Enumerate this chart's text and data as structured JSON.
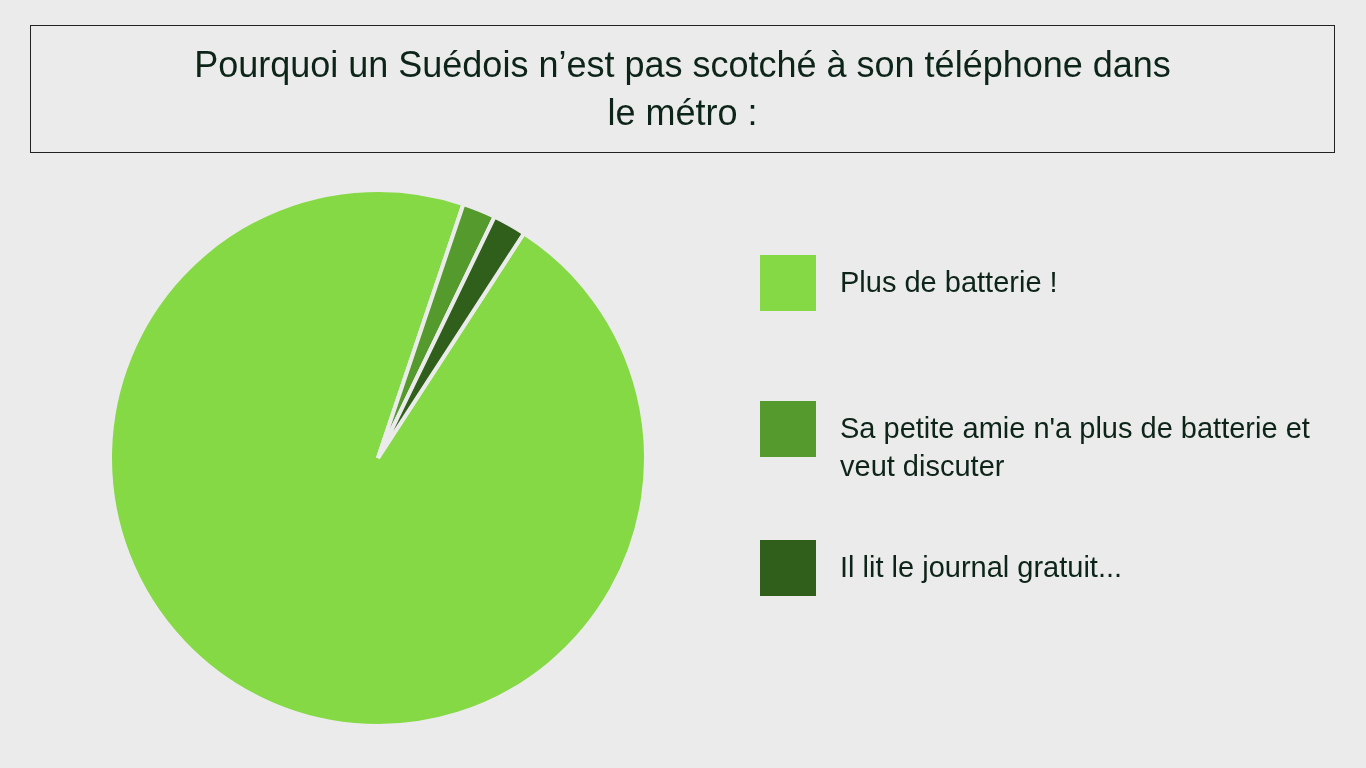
{
  "chart_data": {
    "type": "pie",
    "title": "Pourquoi un Suédois n’est pas scotché à son téléphone dans le métro :",
    "categories": [
      "Plus de batterie !",
      "Sa petite amie n'a plus de batterie et veut discuter",
      "Il lit le journal gratuit..."
    ],
    "values": [
      96,
      2,
      2
    ],
    "colors": [
      "#84d944",
      "#559a2c",
      "#2f5f1a"
    ],
    "legend": "right"
  }
}
